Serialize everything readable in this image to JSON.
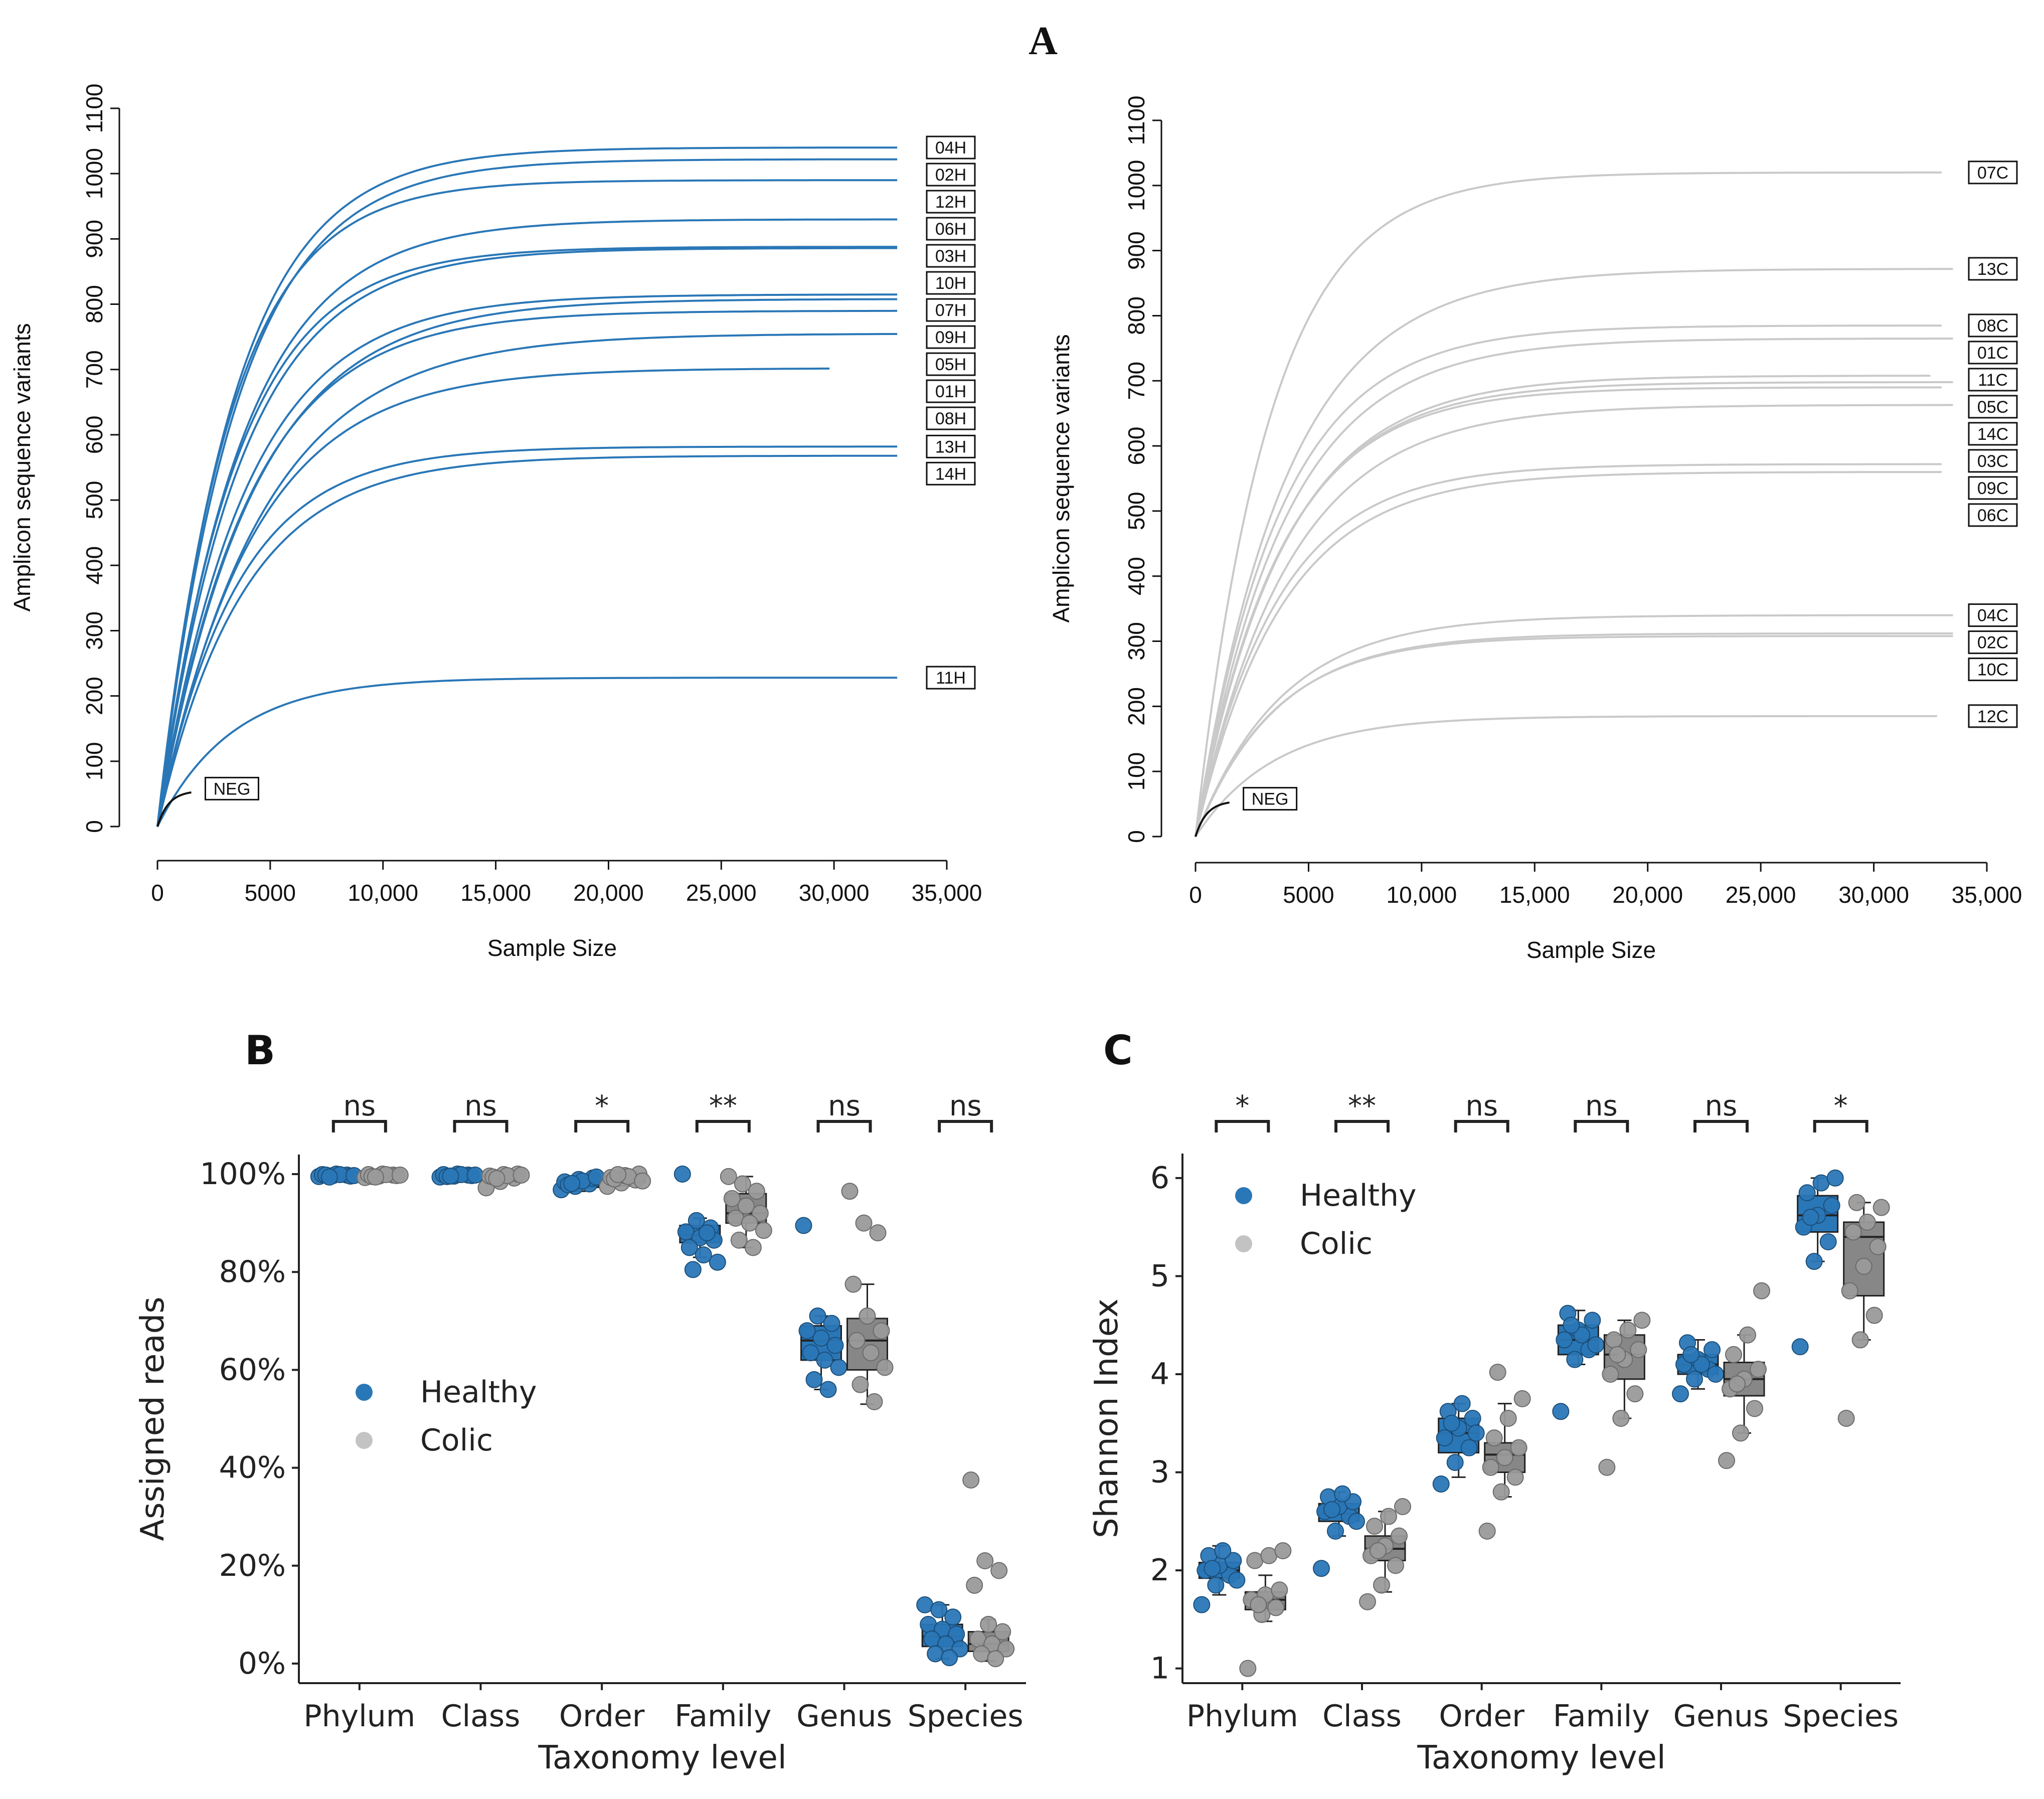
{
  "figure_label": "A",
  "colors": {
    "healthy": "#2a77b7",
    "colic_line": "#c9c9c9",
    "colic_box": "#878787",
    "colic_point": "#9a9a9a",
    "neg": "#111111"
  },
  "chart_data": [
    {
      "id": "A-left",
      "type": "line",
      "title": "",
      "xlabel": "Sample Size",
      "ylabel": "Amplicon sequence variants",
      "xlim": [
        0,
        35000
      ],
      "ylim": [
        0,
        1100
      ],
      "x_ticks": [
        0,
        5000,
        10000,
        15000,
        20000,
        25000,
        30000,
        35000
      ],
      "x_tick_labels": [
        "0",
        "5000",
        "10,000",
        "15,000",
        "20,000",
        "25,000",
        "30,000",
        "35,000"
      ],
      "y_ticks": [
        0,
        100,
        200,
        300,
        400,
        500,
        600,
        700,
        800,
        900,
        1000,
        1100
      ],
      "y_tick_labels": [
        "0",
        "100",
        "200",
        "300",
        "400",
        "500",
        "600",
        "700",
        "800",
        "900",
        "1000",
        "1100"
      ],
      "series": [
        {
          "name": "04H",
          "asymptote": 1040,
          "rate": 3400,
          "x_end": 32800
        },
        {
          "name": "02H",
          "asymptote": 1022,
          "rate": 3500,
          "x_end": 32800
        },
        {
          "name": "12H",
          "asymptote": 990,
          "rate": 3200,
          "x_end": 32800
        },
        {
          "name": "06H",
          "asymptote": 930,
          "rate": 3700,
          "x_end": 32800
        },
        {
          "name": "03H",
          "asymptote": 888,
          "rate": 3500,
          "x_end": 32800
        },
        {
          "name": "10H",
          "asymptote": 886,
          "rate": 3700,
          "x_end": 32800
        },
        {
          "name": "07H",
          "asymptote": 815,
          "rate": 3900,
          "x_end": 32800
        },
        {
          "name": "09H",
          "asymptote": 808,
          "rate": 4200,
          "x_end": 32800
        },
        {
          "name": "05H",
          "asymptote": 790,
          "rate": 4000,
          "x_end": 32800
        },
        {
          "name": "01H",
          "asymptote": 755,
          "rate": 4600,
          "x_end": 32800
        },
        {
          "name": "08H",
          "asymptote": 702,
          "rate": 4200,
          "x_end": 29800
        },
        {
          "name": "13H",
          "asymptote": 582,
          "rate": 3500,
          "x_end": 32800
        },
        {
          "name": "14H",
          "asymptote": 568,
          "rate": 3800,
          "x_end": 32800
        },
        {
          "name": "11H",
          "asymptote": 228,
          "rate": 3300,
          "x_end": 32800
        },
        {
          "name": "NEG",
          "asymptote": 55,
          "rate": 500,
          "x_end": 1500
        }
      ]
    },
    {
      "id": "A-right",
      "type": "line",
      "title": "",
      "xlabel": "Sample Size",
      "ylabel": "Amplicon sequence variants",
      "xlim": [
        0,
        35000
      ],
      "ylim": [
        0,
        1100
      ],
      "x_ticks": [
        0,
        5000,
        10000,
        15000,
        20000,
        25000,
        30000,
        35000
      ],
      "x_tick_labels": [
        "0",
        "5000",
        "10,000",
        "15,000",
        "20,000",
        "25,000",
        "30,000",
        "35,000"
      ],
      "y_ticks": [
        0,
        100,
        200,
        300,
        400,
        500,
        600,
        700,
        800,
        900,
        1000,
        1100
      ],
      "y_tick_labels": [
        "0",
        "100",
        "200",
        "300",
        "400",
        "500",
        "600",
        "700",
        "800",
        "900",
        "1000",
        "1100"
      ],
      "series": [
        {
          "name": "07C",
          "asymptote": 1020,
          "rate": 3300,
          "x_end": 33000
        },
        {
          "name": "13C",
          "asymptote": 872,
          "rate": 4000,
          "x_end": 33500
        },
        {
          "name": "08C",
          "asymptote": 785,
          "rate": 3700,
          "x_end": 33000
        },
        {
          "name": "01C",
          "asymptote": 765,
          "rate": 3900,
          "x_end": 33500
        },
        {
          "name": "11C",
          "asymptote": 708,
          "rate": 3900,
          "x_end": 32500
        },
        {
          "name": "05C",
          "asymptote": 698,
          "rate": 3800,
          "x_end": 33500
        },
        {
          "name": "14C",
          "asymptote": 690,
          "rate": 3700,
          "x_end": 33000
        },
        {
          "name": "03C",
          "asymptote": 663,
          "rate": 4100,
          "x_end": 33500
        },
        {
          "name": "09C",
          "asymptote": 572,
          "rate": 3600,
          "x_end": 33000
        },
        {
          "name": "06C",
          "asymptote": 560,
          "rate": 3800,
          "x_end": 33000
        },
        {
          "name": "04C",
          "asymptote": 340,
          "rate": 3800,
          "x_end": 33500
        },
        {
          "name": "02C",
          "asymptote": 312,
          "rate": 3600,
          "x_end": 33500
        },
        {
          "name": "10C",
          "asymptote": 308,
          "rate": 3500,
          "x_end": 33500
        },
        {
          "name": "12C",
          "asymptote": 185,
          "rate": 3500,
          "x_end": 32800
        },
        {
          "name": "NEG",
          "asymptote": 55,
          "rate": 500,
          "x_end": 1500
        }
      ]
    },
    {
      "id": "B",
      "panel_label": "B",
      "type": "box",
      "xlabel": "Taxonomy level",
      "ylabel": "Assigned reads",
      "categories": [
        "Phylum",
        "Class",
        "Order",
        "Family",
        "Genus",
        "Species"
      ],
      "ylim": [
        -4,
        104
      ],
      "y_ticks": [
        0,
        20,
        40,
        60,
        80,
        100
      ],
      "y_tick_labels": [
        "0%",
        "20%",
        "40%",
        "60%",
        "80%",
        "100%"
      ],
      "significance": [
        "ns",
        "ns",
        "*",
        "**",
        "ns",
        "ns"
      ],
      "legend": [
        "Healthy",
        "Colic"
      ],
      "groups": [
        {
          "name": "Healthy",
          "boxes": [
            {
              "q1": 99.6,
              "median": 99.8,
              "q3": 99.9,
              "whisker_low": 99.3,
              "whisker_high": 100
            },
            {
              "q1": 99.5,
              "median": 99.7,
              "q3": 99.9,
              "whisker_low": 99.2,
              "whisker_high": 100
            },
            {
              "q1": 97.3,
              "median": 98.2,
              "q3": 98.8,
              "whisker_low": 96.5,
              "whisker_high": 99.5
            },
            {
              "q1": 86.0,
              "median": 87.5,
              "q3": 89.5,
              "whisker_low": 83.0,
              "whisker_high": 91.0
            },
            {
              "q1": 62.0,
              "median": 66.0,
              "q3": 69.0,
              "whisker_low": 56.0,
              "whisker_high": 71.0
            },
            {
              "q1": 3.5,
              "median": 5.5,
              "q3": 8.0,
              "whisker_low": 1.0,
              "whisker_high": 12.0
            }
          ],
          "points": [
            [
              99.5,
              99.7,
              99.8,
              99.9,
              100,
              99.6,
              99.8,
              99.9,
              99.7,
              99.4
            ],
            [
              99.4,
              99.6,
              99.8,
              99.9,
              100,
              99.7,
              99.5,
              99.9,
              99.8,
              99.6
            ],
            [
              96.8,
              97.5,
              98.0,
              98.4,
              98.9,
              99.2,
              97.8,
              98.6,
              99.4,
              98.1
            ],
            [
              100,
              90.5,
              89.0,
              88.2,
              87.0,
              86.5,
              85.0,
              83.5,
              82.0,
              80.5,
              88.0
            ],
            [
              89.5,
              71.0,
              69.5,
              68.0,
              66.5,
              65.0,
              63.5,
              62.0,
              60.5,
              58.0,
              56.0
            ],
            [
              12.0,
              11.0,
              9.5,
              8.0,
              7.0,
              6.0,
              5.0,
              4.0,
              3.0,
              2.0,
              1.2
            ]
          ]
        },
        {
          "name": "Colic",
          "boxes": [
            {
              "q1": 99.5,
              "median": 99.8,
              "q3": 99.9,
              "whisker_low": 99.2,
              "whisker_high": 100
            },
            {
              "q1": 99.3,
              "median": 99.6,
              "q3": 99.9,
              "whisker_low": 98.5,
              "whisker_high": 100
            },
            {
              "q1": 98.3,
              "median": 99.0,
              "q3": 99.6,
              "whisker_low": 97.6,
              "whisker_high": 100
            },
            {
              "q1": 90.0,
              "median": 92.0,
              "q3": 96.0,
              "whisker_low": 85.0,
              "whisker_high": 99.5
            },
            {
              "q1": 60.0,
              "median": 66.0,
              "q3": 70.5,
              "whisker_low": 53.0,
              "whisker_high": 77.5
            },
            {
              "q1": 2.5,
              "median": 4.0,
              "q3": 6.5,
              "whisker_low": 0.5,
              "whisker_high": 9.0
            }
          ],
          "points": [
            [
              99.3,
              99.6,
              99.8,
              99.9,
              100,
              99.7,
              99.5,
              99.9,
              99.8,
              99.4
            ],
            [
              97.2,
              98.5,
              99.2,
              99.6,
              99.9,
              100,
              99.4,
              99.7,
              99.8,
              99.1
            ],
            [
              97.5,
              98.2,
              98.8,
              99.3,
              99.7,
              100,
              99.0,
              99.5,
              98.6,
              99.9
            ],
            [
              99.5,
              98.0,
              96.5,
              95.0,
              93.5,
              92.0,
              91.0,
              90.0,
              88.5,
              86.5,
              85.0
            ],
            [
              96.5,
              90.0,
              88.0,
              77.5,
              71.0,
              68.0,
              66.0,
              63.5,
              60.5,
              57.0,
              53.5
            ],
            [
              37.5,
              21.0,
              19.0,
              16.0,
              8.0,
              6.5,
              5.0,
              4.0,
              3.0,
              2.0,
              1.0
            ]
          ]
        }
      ]
    },
    {
      "id": "C",
      "panel_label": "C",
      "type": "box",
      "xlabel": "Taxonomy level",
      "ylabel": "Shannon Index",
      "categories": [
        "Phylum",
        "Class",
        "Order",
        "Family",
        "Genus",
        "Species"
      ],
      "ylim": [
        0.85,
        6.25
      ],
      "y_ticks": [
        1,
        2,
        3,
        4,
        5,
        6
      ],
      "y_tick_labels": [
        "1",
        "2",
        "3",
        "4",
        "5",
        "6"
      ],
      "significance": [
        "*",
        "**",
        "ns",
        "ns",
        "ns",
        "*"
      ],
      "legend": [
        "Healthy",
        "Colic"
      ],
      "groups": [
        {
          "name": "Healthy",
          "boxes": [
            {
              "q1": 1.92,
              "median": 2.0,
              "q3": 2.08,
              "whisker_low": 1.75,
              "whisker_high": 2.25
            },
            {
              "q1": 2.5,
              "median": 2.58,
              "q3": 2.68,
              "whisker_low": 2.35,
              "whisker_high": 2.8
            },
            {
              "q1": 3.2,
              "median": 3.4,
              "q3": 3.55,
              "whisker_low": 2.95,
              "whisker_high": 3.7
            },
            {
              "q1": 4.2,
              "median": 4.35,
              "q3": 4.5,
              "whisker_low": 4.1,
              "whisker_high": 4.65
            },
            {
              "q1": 4.0,
              "median": 4.1,
              "q3": 4.2,
              "whisker_low": 3.85,
              "whisker_high": 4.35
            },
            {
              "q1": 5.45,
              "median": 5.62,
              "q3": 5.82,
              "whisker_low": 5.15,
              "whisker_high": 6.0
            }
          ],
          "points": [
            [
              1.65,
              1.85,
              1.95,
              2.0,
              2.05,
              2.1,
              2.15,
              2.2,
              1.9,
              2.02
            ],
            [
              2.02,
              2.4,
              2.55,
              2.6,
              2.65,
              2.7,
              2.75,
              2.78,
              2.5,
              2.62
            ],
            [
              2.88,
              3.1,
              3.25,
              3.35,
              3.45,
              3.55,
              3.62,
              3.7,
              3.4,
              3.5
            ],
            [
              3.62,
              4.15,
              4.25,
              4.35,
              4.45,
              4.55,
              4.62,
              4.4,
              4.3,
              4.5
            ],
            [
              3.8,
              3.95,
              4.05,
              4.1,
              4.15,
              4.25,
              4.32,
              4.1,
              4.0,
              4.2
            ],
            [
              4.28,
              5.15,
              5.35,
              5.5,
              5.62,
              5.72,
              5.85,
              5.95,
              6.0,
              5.6
            ]
          ]
        },
        {
          "name": "Colic",
          "boxes": [
            {
              "q1": 1.6,
              "median": 1.7,
              "q3": 1.78,
              "whisker_low": 1.48,
              "whisker_high": 1.95
            },
            {
              "q1": 2.1,
              "median": 2.22,
              "q3": 2.35,
              "whisker_low": 1.78,
              "whisker_high": 2.6
            },
            {
              "q1": 3.0,
              "median": 3.18,
              "q3": 3.3,
              "whisker_low": 2.75,
              "whisker_high": 3.7
            },
            {
              "q1": 3.95,
              "median": 4.2,
              "q3": 4.4,
              "whisker_low": 3.55,
              "whisker_high": 4.55
            },
            {
              "q1": 3.78,
              "median": 3.95,
              "q3": 4.12,
              "whisker_low": 3.4,
              "whisker_high": 4.4
            },
            {
              "q1": 4.8,
              "median": 5.4,
              "q3": 5.55,
              "whisker_low": 4.35,
              "whisker_high": 5.75
            }
          ],
          "points": [
            [
              1.0,
              1.55,
              1.62,
              1.7,
              1.75,
              1.8,
              2.1,
              2.15,
              2.2,
              1.65
            ],
            [
              1.68,
              1.85,
              2.05,
              2.15,
              2.25,
              2.35,
              2.45,
              2.55,
              2.65,
              2.2
            ],
            [
              2.4,
              2.8,
              2.95,
              3.05,
              3.15,
              3.25,
              3.35,
              3.55,
              3.75,
              4.02
            ],
            [
              3.05,
              3.55,
              3.8,
              4.0,
              4.15,
              4.25,
              4.35,
              4.45,
              4.55,
              4.2
            ],
            [
              3.12,
              3.4,
              3.65,
              3.85,
              3.95,
              4.05,
              4.2,
              4.4,
              4.85,
              3.9
            ],
            [
              3.55,
              4.35,
              4.6,
              4.85,
              5.1,
              5.3,
              5.45,
              5.55,
              5.7,
              5.75
            ]
          ]
        }
      ]
    }
  ]
}
